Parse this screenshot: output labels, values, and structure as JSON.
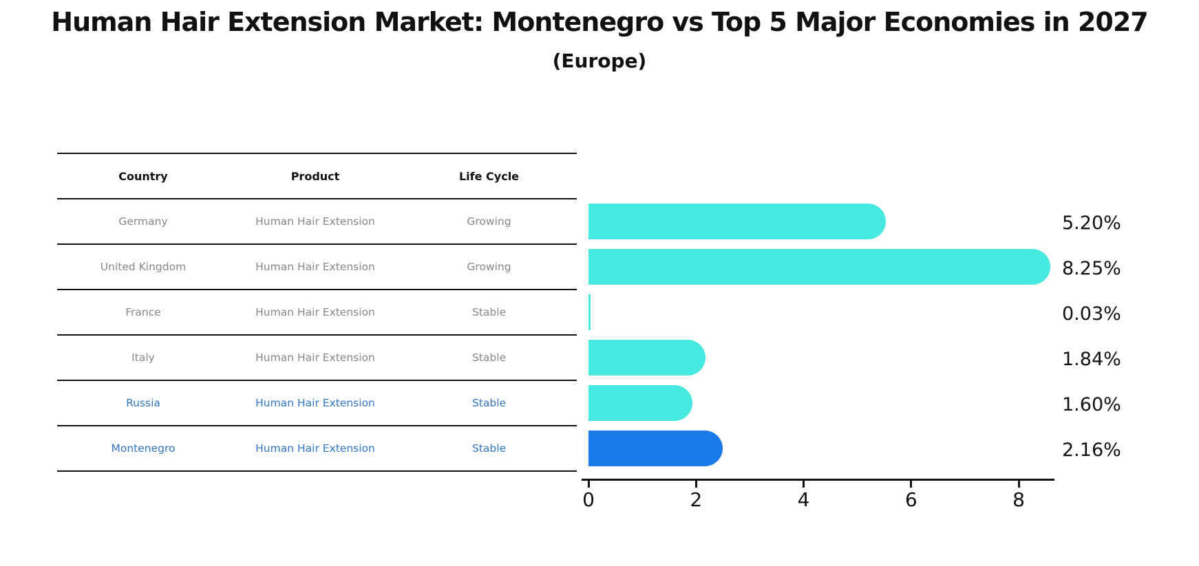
{
  "title": "Human Hair Extension Market: Montenegro vs Top 5 Major Economies in 2027",
  "subtitle": "(Europe)",
  "table": {
    "headers": [
      "Country",
      "Product",
      "Life Cycle"
    ],
    "rows": [
      {
        "country": "Germany",
        "product": "Human Hair Extension",
        "life_cycle": "Growing",
        "highlight": false
      },
      {
        "country": "United Kingdom",
        "product": "Human Hair Extension",
        "life_cycle": "Growing",
        "highlight": false
      },
      {
        "country": "France",
        "product": "Human Hair Extension",
        "life_cycle": "Stable",
        "highlight": false
      },
      {
        "country": "Italy",
        "product": "Human Hair Extension",
        "life_cycle": "Stable",
        "highlight": false
      },
      {
        "country": "Russia",
        "product": "Human Hair Extension",
        "life_cycle": "Stable",
        "highlight": true
      },
      {
        "country": "Montenegro",
        "product": "Human Hair Extension",
        "life_cycle": "Stable",
        "highlight": true
      }
    ]
  },
  "chart_data": {
    "type": "bar",
    "orientation": "horizontal",
    "categories": [
      "Germany",
      "United Kingdom",
      "France",
      "Italy",
      "Russia",
      "Montenegro"
    ],
    "values": [
      5.2,
      8.25,
      0.03,
      1.84,
      1.6,
      2.16
    ],
    "value_labels": [
      "5.20%",
      "8.25%",
      "0.03%",
      "1.84%",
      "1.60%",
      "2.16%"
    ],
    "title": "Human Hair Extension Market: Montenegro vs Top 5 Major Economies in 2027",
    "subtitle": "(Europe)",
    "xlabel": "",
    "ylabel": "",
    "xlim": [
      0,
      8.7
    ],
    "x_ticks": [
      0,
      2,
      4,
      6,
      8
    ],
    "x_tick_labels": [
      "0",
      "2",
      "4",
      "6",
      "8"
    ],
    "grid": false,
    "legend": false,
    "bar_colors": [
      "#46e8e0",
      "#46e8e0",
      "#46e8e0",
      "#46e8e0",
      "#46e8e0",
      "#1b7ae9"
    ],
    "highlight_index": 5,
    "highlight_style": "dashed-outline"
  },
  "colors": {
    "bar_default": "#46e8e0",
    "bar_highlight": "#1b7ae9",
    "highlight_text": "#3377c4",
    "cell_text": "#878787",
    "line": "#111111"
  }
}
